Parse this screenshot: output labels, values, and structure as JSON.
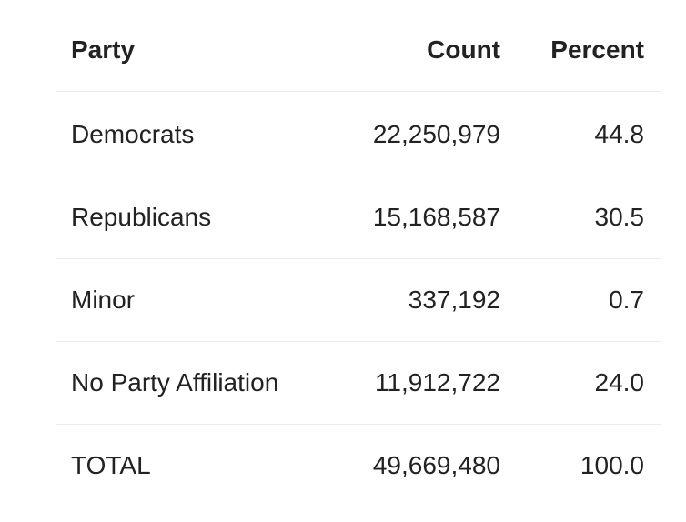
{
  "table": {
    "header": [
      "Party",
      "Count",
      "Percent"
    ],
    "rows": [
      [
        "Democrats",
        "22,250,979",
        "44.8"
      ],
      [
        "Republicans",
        "15,168,587",
        "30.5"
      ],
      [
        "Minor",
        "337,192",
        "0.7"
      ],
      [
        "No Party Affiliation",
        "11,912,722",
        "24.0"
      ],
      [
        "TOTAL",
        "49,669,480",
        "100.0"
      ]
    ]
  }
}
